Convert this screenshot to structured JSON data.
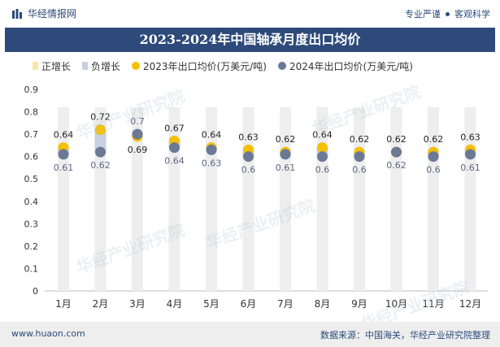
{
  "header": {
    "brand": "华经情报网",
    "tag1": "专业严谨",
    "tag2": "客观科学"
  },
  "title": "2023-2024年中国轴承月度出口均价",
  "legend": [
    {
      "label": "正增长",
      "kind": "bar",
      "color": "#f6e6a8"
    },
    {
      "label": "负增长",
      "kind": "bar",
      "color": "#c7cfe0"
    },
    {
      "label": "2023年出口均价(万美元/吨)",
      "kind": "dot",
      "color": "#f5c000"
    },
    {
      "label": "2024年出口均价(万美元/吨)",
      "kind": "dot",
      "color": "#6b7896"
    }
  ],
  "watermark": "华经产业研究院",
  "footer": {
    "left": "www.huaon.com",
    "right": "数据来源：中国海关，华经产业研究院整理"
  },
  "chart_data": {
    "type": "scatter",
    "categories": [
      "1月",
      "2月",
      "3月",
      "4月",
      "5月",
      "6月",
      "7月",
      "8月",
      "9月",
      "10月",
      "11月",
      "12月"
    ],
    "series": [
      {
        "name": "2023年出口均价(万美元/吨)",
        "values": [
          0.64,
          0.72,
          0.69,
          0.67,
          0.64,
          0.63,
          0.62,
          0.64,
          0.62,
          0.62,
          0.62,
          0.63
        ],
        "color": "#f5c000"
      },
      {
        "name": "2024年出口均价(万美元/吨)",
        "values": [
          0.61,
          0.62,
          0.7,
          0.64,
          0.63,
          0.6,
          0.61,
          0.6,
          0.6,
          0.62,
          0.6,
          0.61
        ],
        "color": "#6b7896"
      }
    ],
    "y_ticks": [
      "0",
      "0.1",
      "0.2",
      "0.3",
      "0.4",
      "0.5",
      "0.6",
      "0.7",
      "0.8",
      "0.9"
    ],
    "ylim": [
      0,
      0.9
    ],
    "grid": false,
    "legend_position": "top",
    "background_bar_color": "#eeeeee",
    "pos_change_color": "#f6e6a8",
    "neg_change_color": "#c7cfe0"
  }
}
